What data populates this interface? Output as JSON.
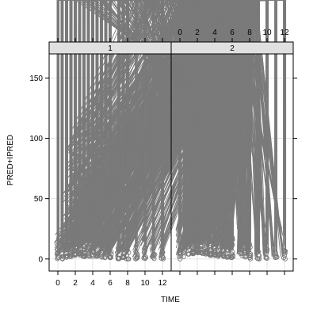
{
  "chart_data": {
    "type": "scatter",
    "xlabel": "TIME",
    "ylabel": "PRED+IPRED",
    "panels": [
      {
        "strip": "1"
      },
      {
        "strip": "2"
      }
    ],
    "xlim": [
      -1,
      13
    ],
    "ylim": [
      -10,
      170
    ],
    "x_ticks": [
      0,
      2,
      4,
      6,
      8,
      10,
      12
    ],
    "y_ticks": [
      0,
      50,
      100,
      150
    ],
    "grid": true,
    "marker_color": "#7a7a7a",
    "strip_color": "#e0e0e0",
    "series": [
      {
        "panel": 0,
        "x": [
          0,
          0.5,
          1,
          1.5,
          2,
          2.5,
          3,
          3.5,
          4,
          4.5,
          5,
          5.5,
          6,
          7,
          7.5,
          8,
          9,
          10,
          11,
          12
        ],
        "triangle_max": [
          20,
          22,
          55,
          93,
          108,
          65,
          103,
          55,
          92,
          62,
          80,
          45,
          55,
          48,
          25,
          42,
          10,
          27,
          12,
          20
        ],
        "triangle_min": [
          2,
          4,
          5,
          7,
          7,
          7,
          10,
          8,
          5,
          6,
          4,
          3,
          3,
          2,
          3,
          2,
          1,
          1,
          1,
          1
        ],
        "circle_max": [
          8,
          10,
          20,
          40,
          87,
          40,
          45,
          30,
          33,
          22,
          20,
          15,
          16,
          12,
          8,
          10,
          5,
          7,
          4,
          6
        ],
        "circle_min": [
          0,
          0,
          1,
          2,
          3,
          3,
          2,
          2,
          2,
          2,
          1,
          1,
          1,
          0,
          1,
          0,
          0,
          0,
          0,
          0
        ]
      },
      {
        "panel": 1,
        "x": [
          0,
          0.5,
          1,
          1.5,
          2,
          2.5,
          3,
          3.5,
          4,
          4.5,
          5,
          5.5,
          6,
          7,
          7.5,
          8,
          9,
          10,
          11,
          12
        ],
        "triangle_max": [
          25,
          35,
          152,
          90,
          137,
          60,
          110,
          75,
          88,
          55,
          72,
          40,
          48,
          45,
          25,
          47,
          20,
          27,
          15,
          25
        ],
        "triangle_min": [
          3,
          5,
          8,
          10,
          10,
          10,
          12,
          10,
          8,
          8,
          6,
          5,
          5,
          4,
          4,
          3,
          2,
          2,
          2,
          2
        ],
        "circle_max": [
          8,
          12,
          25,
          45,
          90,
          45,
          50,
          35,
          38,
          25,
          22,
          18,
          18,
          14,
          10,
          12,
          6,
          8,
          5,
          7
        ],
        "circle_min": [
          0,
          1,
          4,
          4,
          5,
          4,
          4,
          3,
          3,
          2,
          2,
          1,
          1,
          1,
          1,
          0,
          0,
          0,
          0,
          0
        ]
      }
    ]
  }
}
